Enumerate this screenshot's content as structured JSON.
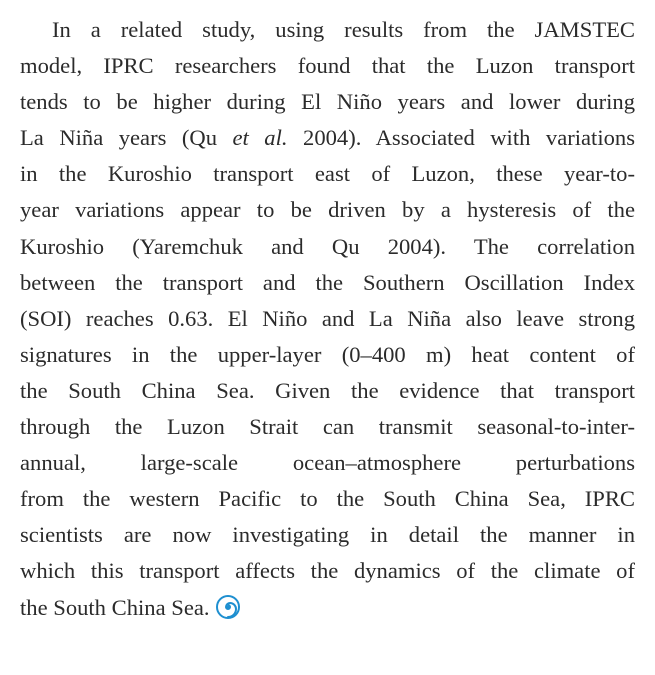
{
  "paragraph": {
    "lines": [
      "In a related study, using results from the JAMSTEC",
      "model, IPRC researchers found that the Luzon transport",
      "tends to be higher during El Niño years and lower during",
      {
        "before": "La Niña years (Qu ",
        "emphasis": "et al.",
        "after": " 2004). Associated with variations"
      },
      "in the Kuroshio transport east of Luzon, these year-to-",
      "year variations appear to be driven by a hysteresis of the",
      "Kuroshio (Yaremchuk and Qu 2004). The correlation",
      "between the transport and the Southern Oscillation Index",
      "(SOI) reaches 0.63. El Niño and La Niña also leave strong",
      "signatures in the upper-layer (0–400 m) heat content of",
      "the South China Sea. Given the evidence that transport",
      "through the Luzon Strait can transmit seasonal-to-inter-",
      "annual, large-scale ocean–atmosphere perturbations",
      "from the western Pacific to the South China Sea, IPRC",
      "scientists are now investigating in detail the manner in",
      "which this transport affects the dynamics of the climate of",
      "the South China Sea."
    ]
  }
}
